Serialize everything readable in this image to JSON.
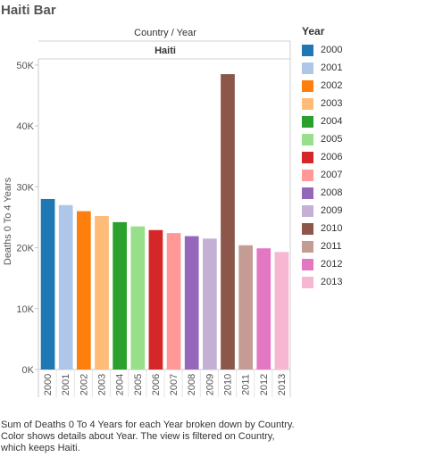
{
  "sheet_title": "Haiti Bar",
  "caption": "Sum of Deaths 0 To 4 Years for each Year broken down by Country.  Color shows details about Year. The view is filtered on Country, which keeps Haiti.",
  "legend": {
    "title": "Year",
    "items": [
      {
        "label": "2000",
        "color": "#1f77b4"
      },
      {
        "label": "2001",
        "color": "#aec7e8"
      },
      {
        "label": "2002",
        "color": "#ff7f0e"
      },
      {
        "label": "2003",
        "color": "#ffbb78"
      },
      {
        "label": "2004",
        "color": "#2ca02c"
      },
      {
        "label": "2005",
        "color": "#98df8a"
      },
      {
        "label": "2006",
        "color": "#d62728"
      },
      {
        "label": "2007",
        "color": "#ff9896"
      },
      {
        "label": "2008",
        "color": "#9467bd"
      },
      {
        "label": "2009",
        "color": "#c5b0d5"
      },
      {
        "label": "2010",
        "color": "#8c564b"
      },
      {
        "label": "2011",
        "color": "#c49c94"
      },
      {
        "label": "2012",
        "color": "#e377c2"
      },
      {
        "label": "2013",
        "color": "#f7b6d2"
      }
    ]
  },
  "chart_data": {
    "type": "bar",
    "title": "Haiti Bar",
    "column_header": "Country  /  Year",
    "pane_label": "Haiti",
    "ylabel": "Deaths 0 To 4 Years",
    "ylim": [
      0,
      51000
    ],
    "yticks": [
      0,
      10000,
      20000,
      30000,
      40000,
      50000
    ],
    "ytick_labels": [
      "0K",
      "10K",
      "20K",
      "30K",
      "40K",
      "50K"
    ],
    "grid": false,
    "legend_position": "right",
    "categories": [
      "2000",
      "2001",
      "2002",
      "2003",
      "2004",
      "2005",
      "2006",
      "2007",
      "2008",
      "2009",
      "2010",
      "2011",
      "2012",
      "2013"
    ],
    "values": [
      28000,
      27000,
      26000,
      25200,
      24200,
      23500,
      22900,
      22400,
      21900,
      21500,
      48500,
      20400,
      19900,
      19300
    ]
  }
}
